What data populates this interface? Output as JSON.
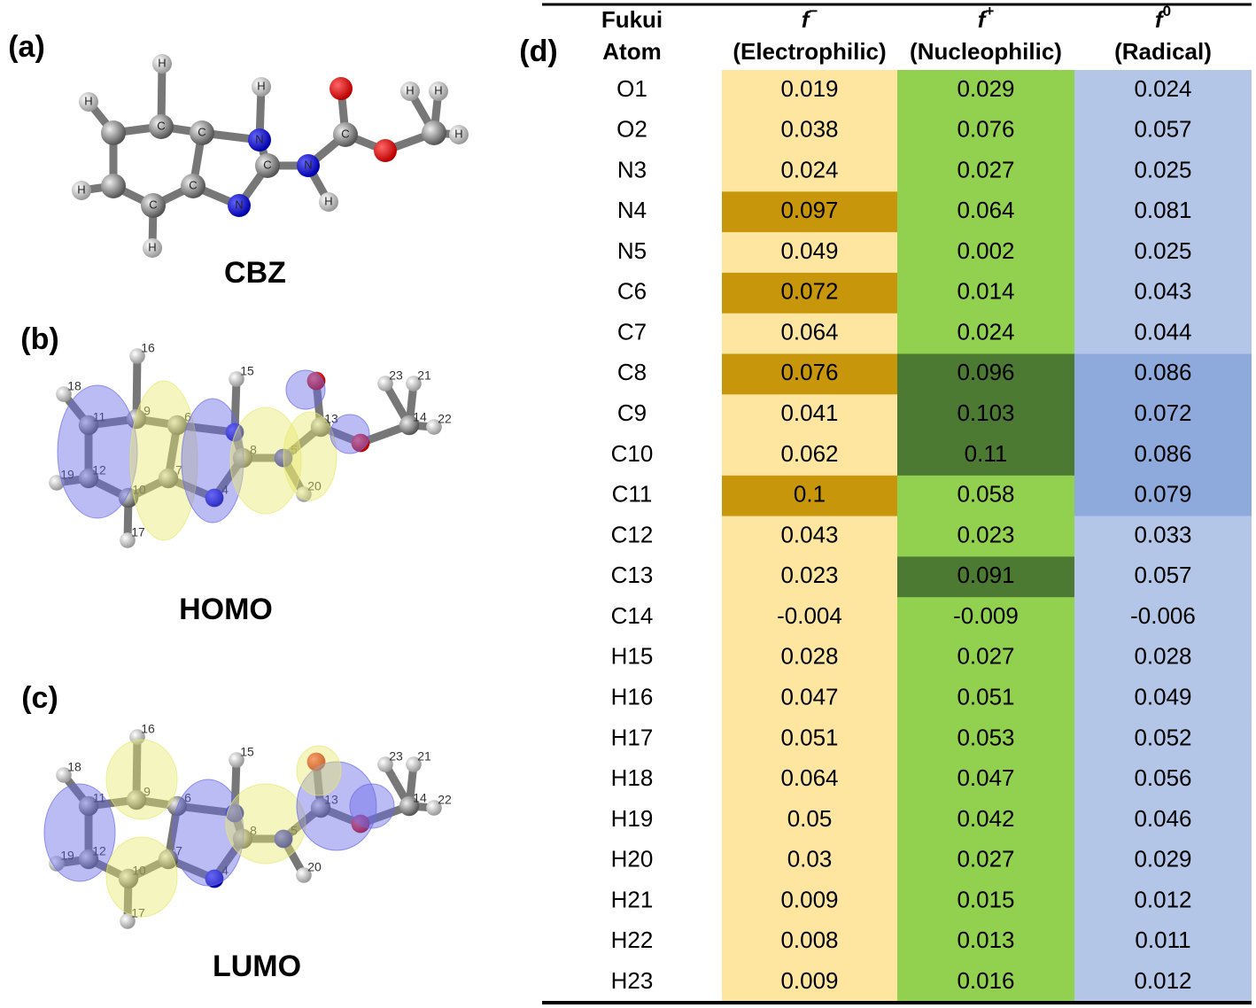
{
  "panels": [
    {
      "label": "(a)",
      "name": "CBZ",
      "atom_labels": [
        "C",
        "C",
        "C",
        "C",
        "H",
        "H",
        "H",
        "H",
        "N",
        "H",
        "C",
        "N",
        "N",
        "H",
        "C",
        "H",
        "H",
        "H"
      ]
    },
    {
      "label": "(b)",
      "name": "HOMO",
      "atom_labels": [
        "9",
        "6",
        "7",
        "10",
        "12",
        "11",
        "16",
        "18",
        "19",
        "17",
        "15",
        "8",
        "4",
        "5",
        "20",
        "13",
        "14",
        "23",
        "21",
        "22"
      ]
    },
    {
      "label": "(c)",
      "name": "LUMO",
      "atom_labels": [
        "9",
        "6",
        "7",
        "10",
        "12",
        "11",
        "16",
        "18",
        "19",
        "17",
        "15",
        "8",
        "4",
        "5",
        "20",
        "13",
        "14",
        "23",
        "21",
        "22"
      ]
    }
  ],
  "table": {
    "label": "(d)",
    "header": [
      {
        "lines": [
          "Fukui",
          "Atom"
        ]
      },
      {
        "symbol": "f",
        "sup": "−",
        "caption": "(Electrophilic)",
        "color": "#ffe6a0",
        "highlight_color": "#c8960a",
        "highlighted": [
          "N4",
          "C6",
          "C8",
          "C11"
        ]
      },
      {
        "symbol": "f",
        "sup": "+",
        "caption": "(Nucleophilic)",
        "color": "#92d050",
        "highlight_color": "#4d7a33",
        "highlighted": [
          "C8",
          "C9",
          "C10",
          "C13"
        ]
      },
      {
        "symbol": "f",
        "sup": "0",
        "caption": "(Radical)",
        "color": "#b4c6e7",
        "highlight_color": "#8eaadc",
        "highlighted": [
          "C8",
          "C9",
          "C10",
          "C11"
        ]
      }
    ],
    "rows": [
      [
        "O1",
        0.019,
        0.029,
        0.024
      ],
      [
        "O2",
        0.038,
        0.076,
        0.057
      ],
      [
        "N3",
        0.024,
        0.027,
        0.025
      ],
      [
        "N4",
        0.097,
        0.064,
        0.081
      ],
      [
        "N5",
        0.049,
        0.002,
        0.025
      ],
      [
        "C6",
        0.072,
        0.014,
        0.043
      ],
      [
        "C7",
        0.064,
        0.024,
        0.044
      ],
      [
        "C8",
        0.076,
        0.096,
        0.086
      ],
      [
        "C9",
        0.041,
        0.103,
        0.072
      ],
      [
        "C10",
        0.062,
        0.11,
        0.086
      ],
      [
        "C11",
        0.1,
        0.058,
        0.079
      ],
      [
        "C12",
        0.043,
        0.023,
        0.033
      ],
      [
        "C13",
        0.023,
        0.091,
        0.057
      ],
      [
        "C14",
        -0.004,
        -0.009,
        -0.006
      ],
      [
        "H15",
        0.028,
        0.027,
        0.028
      ],
      [
        "H16",
        0.047,
        0.051,
        0.049
      ],
      [
        "H17",
        0.051,
        0.053,
        0.052
      ],
      [
        "H18",
        0.064,
        0.047,
        0.056
      ],
      [
        "H19",
        0.05,
        0.042,
        0.046
      ],
      [
        "H20",
        0.03,
        0.027,
        0.029
      ],
      [
        "H21",
        0.009,
        0.015,
        0.012
      ],
      [
        "H22",
        0.008,
        0.013,
        0.011
      ],
      [
        "H23",
        0.009,
        0.016,
        0.012
      ]
    ]
  }
}
